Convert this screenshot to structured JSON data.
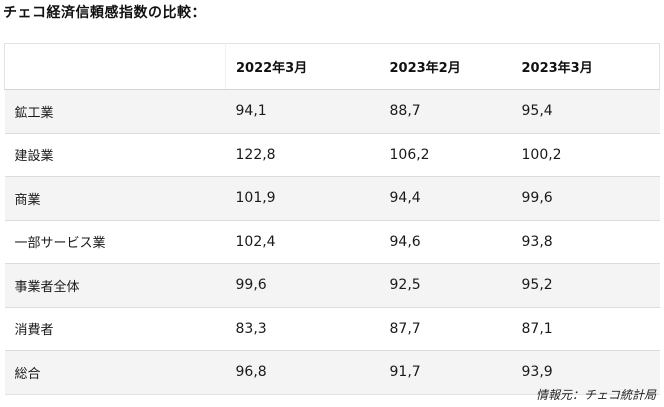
{
  "title": "チェコ経済信頼感指数の比較：",
  "table": {
    "headers": [
      "",
      "2022年3月",
      "2023年2月",
      "2023年3月"
    ],
    "rows": [
      [
        "鉱工業",
        "94,1",
        "88,7",
        "95,4"
      ],
      [
        "建設業",
        "122,8",
        "106,2",
        "100,2"
      ],
      [
        "商業",
        "101,9",
        "94,4",
        "99,6"
      ],
      [
        "一部サービス業",
        "102,4",
        "94,6",
        "93,8"
      ],
      [
        "事業者全体",
        "99,6",
        "92,5",
        "95,2"
      ],
      [
        "消費者",
        "83,3",
        "87,7",
        "87,1"
      ],
      [
        "総合",
        "96,8",
        "91,7",
        "93,9"
      ]
    ]
  },
  "source": "情報元：チェコ統計局"
}
